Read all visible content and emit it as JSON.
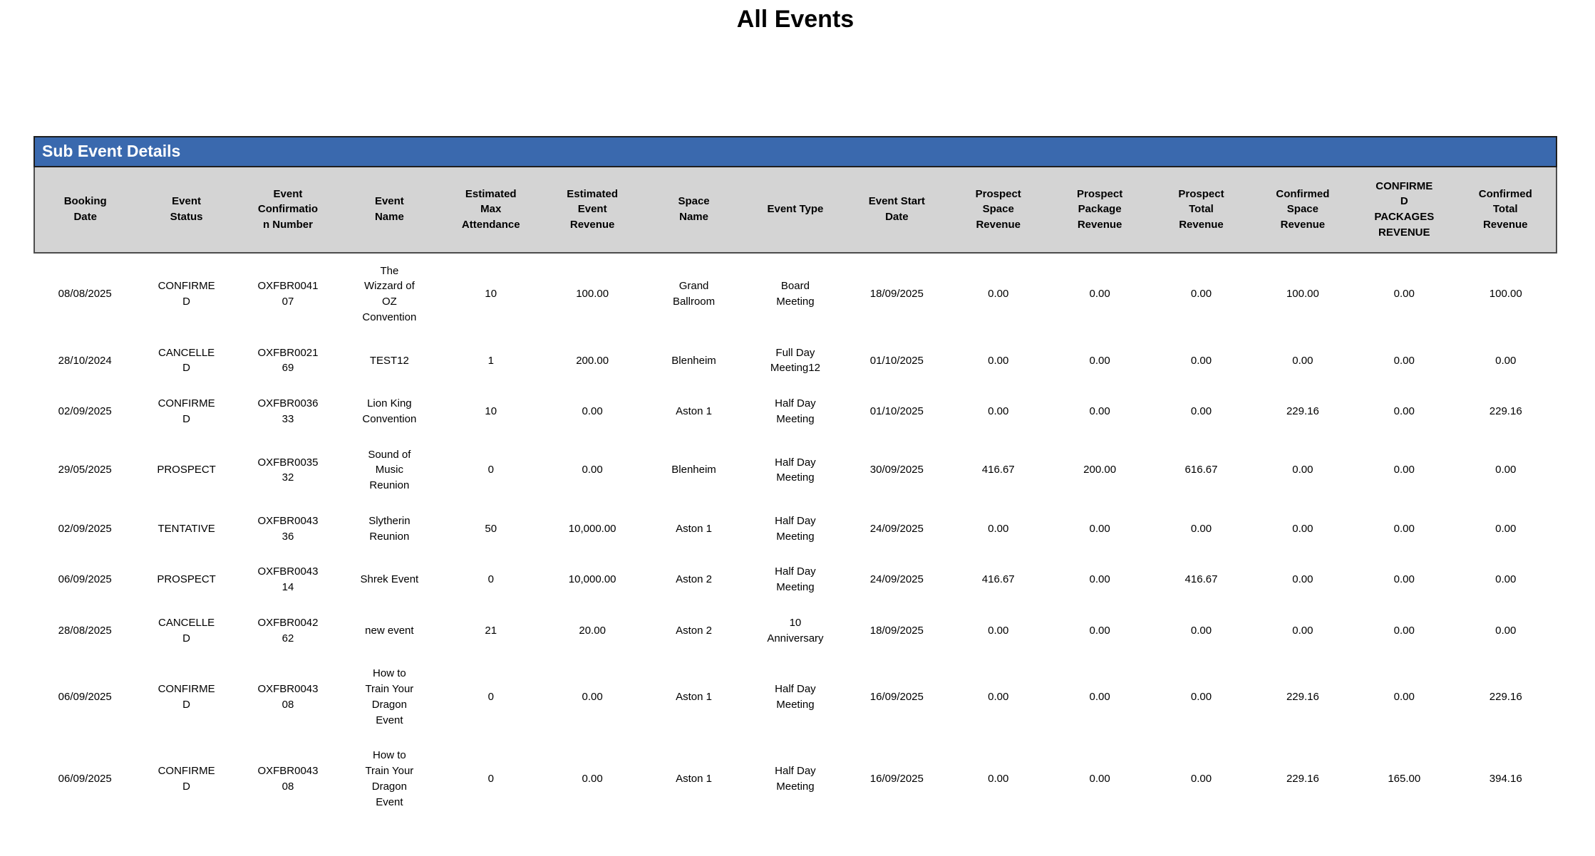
{
  "page": {
    "title": "All Events"
  },
  "section": {
    "title": "Sub Event Details"
  },
  "colors": {
    "section_bar_bg": "#3a69ae",
    "section_bar_text": "#ffffff",
    "header_row_bg": "#d4d4d4",
    "frame_border": "#4d4d4d",
    "body_text": "#000000"
  },
  "table": {
    "columns": [
      "Booking\nDate",
      "Event\nStatus",
      "Event\nConfirmatio\nn Number",
      "Event\nName",
      "Estimated\nMax\nAttendance",
      "Estimated\nEvent\nRevenue",
      "Space\nName",
      "Event Type",
      "Event Start\nDate",
      "Prospect\nSpace\nRevenue",
      "Prospect\nPackage\nRevenue",
      "Prospect\nTotal\nRevenue",
      "Confirmed\nSpace\nRevenue",
      "CONFIRME\nD\nPACKAGES\nREVENUE",
      "Confirmed\nTotal\nRevenue"
    ],
    "rows": [
      [
        "08/08/2025",
        "CONFIRME\nD",
        "OXFBR0041\n07",
        "The\nWizzard of\nOZ\nConvention",
        "10",
        "100.00",
        "Grand\nBallroom",
        "Board\nMeeting",
        "18/09/2025",
        "0.00",
        "0.00",
        "0.00",
        "100.00",
        "0.00",
        "100.00"
      ],
      [
        "28/10/2024",
        "CANCELLE\nD",
        "OXFBR0021\n69",
        "TEST12",
        "1",
        "200.00",
        "Blenheim",
        "Full Day\nMeeting12",
        "01/10/2025",
        "0.00",
        "0.00",
        "0.00",
        "0.00",
        "0.00",
        "0.00"
      ],
      [
        "02/09/2025",
        "CONFIRME\nD",
        "OXFBR0036\n33",
        "Lion King\nConvention",
        "10",
        "0.00",
        "Aston 1",
        "Half Day\nMeeting",
        "01/10/2025",
        "0.00",
        "0.00",
        "0.00",
        "229.16",
        "0.00",
        "229.16"
      ],
      [
        "29/05/2025",
        "PROSPECT",
        "OXFBR0035\n32",
        "Sound of\nMusic\nReunion",
        "0",
        "0.00",
        "Blenheim",
        "Half Day\nMeeting",
        "30/09/2025",
        "416.67",
        "200.00",
        "616.67",
        "0.00",
        "0.00",
        "0.00"
      ],
      [
        "02/09/2025",
        "TENTATIVE",
        "OXFBR0043\n36",
        "Slytherin\nReunion",
        "50",
        "10,000.00",
        "Aston 1",
        "Half Day\nMeeting",
        "24/09/2025",
        "0.00",
        "0.00",
        "0.00",
        "0.00",
        "0.00",
        "0.00"
      ],
      [
        "06/09/2025",
        "PROSPECT",
        "OXFBR0043\n14",
        "Shrek Event",
        "0",
        "10,000.00",
        "Aston 2",
        "Half Day\nMeeting",
        "24/09/2025",
        "416.67",
        "0.00",
        "416.67",
        "0.00",
        "0.00",
        "0.00"
      ],
      [
        "28/08/2025",
        "CANCELLE\nD",
        "OXFBR0042\n62",
        "new event",
        "21",
        "20.00",
        "Aston 2",
        "10\nAnniversary",
        "18/09/2025",
        "0.00",
        "0.00",
        "0.00",
        "0.00",
        "0.00",
        "0.00"
      ],
      [
        "06/09/2025",
        "CONFIRME\nD",
        "OXFBR0043\n08",
        "How to\nTrain Your\nDragon\nEvent",
        "0",
        "0.00",
        "Aston 1",
        "Half Day\nMeeting",
        "16/09/2025",
        "0.00",
        "0.00",
        "0.00",
        "229.16",
        "0.00",
        "229.16"
      ],
      [
        "06/09/2025",
        "CONFIRME\nD",
        "OXFBR0043\n08",
        "How to\nTrain Your\nDragon\nEvent",
        "0",
        "0.00",
        "Aston 1",
        "Half Day\nMeeting",
        "16/09/2025",
        "0.00",
        "0.00",
        "0.00",
        "229.16",
        "165.00",
        "394.16"
      ]
    ]
  }
}
